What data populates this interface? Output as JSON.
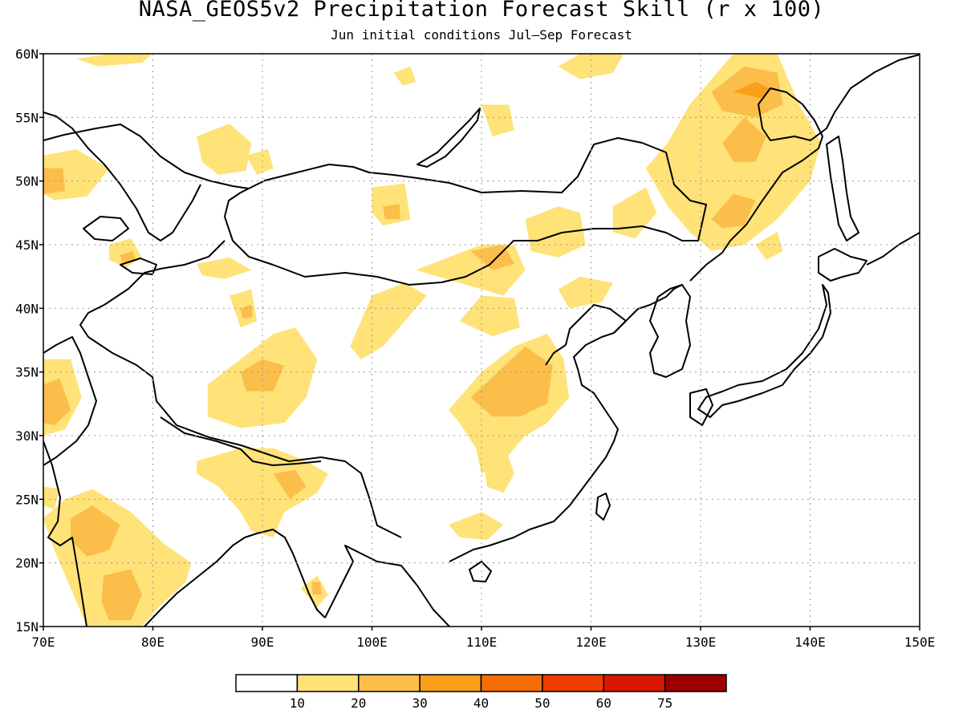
{
  "title": "NASA_GEOS5v2 Precipitation Forecast Skill (r x 100)",
  "subtitle": "Jun initial conditions  Jul—Sep Forecast",
  "map": {
    "lon_range": [
      70,
      150
    ],
    "lat_range": [
      15,
      60
    ],
    "lon_ticks": [
      "70E",
      "80E",
      "90E",
      "100E",
      "110E",
      "120E",
      "130E",
      "140E",
      "150E"
    ],
    "lat_ticks": [
      "15N",
      "20N",
      "25N",
      "30N",
      "35N",
      "40N",
      "45N",
      "50N",
      "55N",
      "60N"
    ],
    "gridlines": true
  },
  "colorbar": {
    "labels": [
      "10",
      "20",
      "30",
      "40",
      "50",
      "60",
      "75"
    ],
    "colors": [
      "#ffffff",
      "#ffe278",
      "#fbbe4a",
      "#f99f1c",
      "#f66c04",
      "#ef3c00",
      "#d81800",
      "#9e0000"
    ]
  },
  "skill_regions": [
    {
      "name": "n-india-west",
      "level": 1,
      "pts": [
        [
          70,
          36
        ],
        [
          72.5,
          36
        ],
        [
          73.5,
          33
        ],
        [
          72,
          30.5
        ],
        [
          70,
          30
        ]
      ]
    },
    {
      "name": "n-india-west-core",
      "level": 2,
      "pts": [
        [
          70,
          34
        ],
        [
          71.5,
          34.5
        ],
        [
          72.5,
          32
        ],
        [
          71,
          30.8
        ],
        [
          70,
          31
        ]
      ]
    },
    {
      "name": "india-main",
      "level": 1,
      "pts": [
        [
          70,
          23.5
        ],
        [
          72,
          25
        ],
        [
          74.5,
          25.8
        ],
        [
          78,
          24
        ],
        [
          81,
          21.5
        ],
        [
          83.5,
          20
        ],
        [
          83,
          18.5
        ],
        [
          80.5,
          16.5
        ],
        [
          79,
          15
        ],
        [
          74,
          15
        ],
        [
          73,
          17
        ],
        [
          71,
          21
        ]
      ]
    },
    {
      "name": "india-core-1",
      "level": 2,
      "pts": [
        [
          72.5,
          23.5
        ],
        [
          74.5,
          24.5
        ],
        [
          77,
          23
        ],
        [
          76,
          21
        ],
        [
          74,
          20.5
        ],
        [
          72.5,
          21.8
        ]
      ]
    },
    {
      "name": "india-core-2",
      "level": 2,
      "pts": [
        [
          75.5,
          19
        ],
        [
          78,
          19.5
        ],
        [
          79,
          17.5
        ],
        [
          78,
          15.5
        ],
        [
          76,
          15.5
        ],
        [
          75.3,
          17
        ]
      ]
    },
    {
      "name": "india-sw",
      "level": 1,
      "pts": [
        [
          70,
          26
        ],
        [
          71.5,
          25.8
        ],
        [
          71,
          24.2
        ],
        [
          70,
          24.5
        ]
      ]
    },
    {
      "name": "kaz-west",
      "level": 1,
      "pts": [
        [
          70,
          52
        ],
        [
          73,
          52.5
        ],
        [
          76,
          51
        ],
        [
          74,
          48.8
        ],
        [
          71,
          48.5
        ],
        [
          70,
          49
        ]
      ]
    },
    {
      "name": "kaz-west-core",
      "level": 2,
      "pts": [
        [
          70,
          51
        ],
        [
          71.8,
          51
        ],
        [
          72,
          49.2
        ],
        [
          70,
          49
        ]
      ]
    },
    {
      "name": "kaz-small",
      "level": 1,
      "pts": [
        [
          76,
          45
        ],
        [
          78,
          45.5
        ],
        [
          79,
          44
        ],
        [
          77.5,
          43.2
        ],
        [
          76,
          43.8
        ]
      ]
    },
    {
      "name": "kaz-small-core",
      "level": 2,
      "pts": [
        [
          77,
          44.2
        ],
        [
          78.2,
          44.5
        ],
        [
          78.4,
          43.7
        ],
        [
          77.2,
          43.6
        ]
      ]
    },
    {
      "name": "siberia-top",
      "level": 1,
      "pts": [
        [
          73,
          59.6
        ],
        [
          76,
          60
        ],
        [
          80,
          60
        ],
        [
          79,
          59.3
        ],
        [
          75,
          59
        ]
      ]
    },
    {
      "name": "siberia-mid",
      "level": 1,
      "pts": [
        [
          84,
          53.5
        ],
        [
          87,
          54.5
        ],
        [
          89,
          53
        ],
        [
          88.5,
          50.8
        ],
        [
          86,
          50.5
        ],
        [
          84.5,
          51.5
        ]
      ]
    },
    {
      "name": "sayan",
      "level": 1,
      "pts": [
        [
          88.5,
          52
        ],
        [
          90.5,
          52.5
        ],
        [
          91,
          51
        ],
        [
          89.5,
          50.5
        ]
      ]
    },
    {
      "name": "west-mongolia",
      "level": 1,
      "pts": [
        [
          100,
          49.5
        ],
        [
          103,
          49.8
        ],
        [
          103.5,
          47
        ],
        [
          101,
          46.5
        ],
        [
          100,
          47.5
        ]
      ]
    },
    {
      "name": "west-mongolia-core",
      "level": 2,
      "pts": [
        [
          101,
          48
        ],
        [
          102.5,
          48.2
        ],
        [
          102.6,
          47
        ],
        [
          101.2,
          47
        ]
      ]
    },
    {
      "name": "baikal-n",
      "level": 1,
      "pts": [
        [
          110,
          56
        ],
        [
          112.5,
          56
        ],
        [
          113,
          54
        ],
        [
          111,
          53.5
        ]
      ]
    },
    {
      "name": "siberia-east-top",
      "level": 1,
      "pts": [
        [
          102,
          58.5
        ],
        [
          103.5,
          59
        ],
        [
          104,
          57.8
        ],
        [
          102.8,
          57.5
        ]
      ]
    },
    {
      "name": "tibet-west",
      "level": 1,
      "pts": [
        [
          85,
          34
        ],
        [
          88,
          36
        ],
        [
          91,
          38
        ],
        [
          93,
          38.5
        ],
        [
          95,
          36
        ],
        [
          94,
          33
        ],
        [
          92,
          31
        ],
        [
          88,
          30.6
        ],
        [
          85,
          31.5
        ]
      ]
    },
    {
      "name": "tibet-west-core",
      "level": 2,
      "pts": [
        [
          88,
          35
        ],
        [
          90,
          36
        ],
        [
          92,
          35.5
        ],
        [
          91,
          33.5
        ],
        [
          88.5,
          33.5
        ]
      ]
    },
    {
      "name": "qinghai",
      "level": 1,
      "pts": [
        [
          87,
          41
        ],
        [
          89,
          41.5
        ],
        [
          89.5,
          39
        ],
        [
          88,
          38.5
        ]
      ]
    },
    {
      "name": "qinghai-core",
      "level": 2,
      "pts": [
        [
          88,
          40
        ],
        [
          89,
          40.3
        ],
        [
          89.1,
          39.3
        ],
        [
          88.2,
          39.2
        ]
      ]
    },
    {
      "name": "xinjiang",
      "level": 1,
      "pts": [
        [
          84,
          43.5
        ],
        [
          87,
          44
        ],
        [
          89,
          43
        ],
        [
          86.5,
          42.3
        ],
        [
          84.5,
          42.6
        ]
      ]
    },
    {
      "name": "gansu",
      "level": 1,
      "pts": [
        [
          98,
          37
        ],
        [
          100,
          41
        ],
        [
          103,
          42
        ],
        [
          105,
          41
        ],
        [
          103,
          39
        ],
        [
          101,
          37
        ],
        [
          99,
          36
        ]
      ]
    },
    {
      "name": "inner-mong",
      "level": 1,
      "pts": [
        [
          104,
          43
        ],
        [
          107,
          44
        ],
        [
          110,
          45
        ],
        [
          113,
          45
        ],
        [
          114,
          43
        ],
        [
          112,
          41
        ],
        [
          108,
          42
        ]
      ]
    },
    {
      "name": "inner-mong-core",
      "level": 2,
      "pts": [
        [
          109,
          44.5
        ],
        [
          112,
          45
        ],
        [
          113,
          43.5
        ],
        [
          111,
          43
        ]
      ]
    },
    {
      "name": "shanxi",
      "level": 1,
      "pts": [
        [
          108,
          39
        ],
        [
          110,
          41
        ],
        [
          113,
          40.8
        ],
        [
          113.5,
          38.5
        ],
        [
          111,
          37.8
        ]
      ]
    },
    {
      "name": "central-china",
      "level": 1,
      "pts": [
        [
          107,
          32
        ],
        [
          110,
          35
        ],
        [
          113,
          37
        ],
        [
          116,
          38
        ],
        [
          117.5,
          36
        ],
        [
          118,
          33
        ],
        [
          116,
          31
        ],
        [
          114,
          30
        ],
        [
          112,
          28
        ],
        [
          110,
          27
        ],
        [
          109.5,
          29
        ],
        [
          108,
          31
        ]
      ]
    },
    {
      "name": "central-china-core",
      "level": 2,
      "pts": [
        [
          109,
          33
        ],
        [
          111.5,
          35
        ],
        [
          114,
          37
        ],
        [
          116.5,
          35.5
        ],
        [
          116,
          32.5
        ],
        [
          113.5,
          31.5
        ],
        [
          111,
          31.5
        ]
      ]
    },
    {
      "name": "south-china",
      "level": 1,
      "pts": [
        [
          110,
          29
        ],
        [
          112,
          29.5
        ],
        [
          113,
          27
        ],
        [
          112,
          25.5
        ],
        [
          110.5,
          26
        ]
      ]
    },
    {
      "name": "yunnan-guangxi",
      "level": 1,
      "pts": [
        [
          107,
          23
        ],
        [
          110,
          24
        ],
        [
          112,
          23
        ],
        [
          110.5,
          21.8
        ],
        [
          108,
          22
        ]
      ]
    },
    {
      "name": "himalaya-east",
      "level": 1,
      "pts": [
        [
          84,
          28
        ],
        [
          88,
          29
        ],
        [
          91,
          29
        ],
        [
          94,
          28
        ],
        [
          96,
          27
        ],
        [
          95,
          25.5
        ],
        [
          92,
          24
        ],
        [
          91,
          22
        ],
        [
          89,
          22.5
        ],
        [
          88,
          24
        ],
        [
          86,
          26
        ],
        [
          84,
          27
        ]
      ]
    },
    {
      "name": "himalaya-east-core",
      "level": 2,
      "pts": [
        [
          91,
          27
        ],
        [
          93,
          27.3
        ],
        [
          94,
          26
        ],
        [
          92.5,
          25
        ]
      ]
    },
    {
      "name": "myanmar",
      "level": 1,
      "pts": [
        [
          93.5,
          18
        ],
        [
          95,
          19
        ],
        [
          96,
          17.5
        ],
        [
          95,
          16.5
        ]
      ]
    },
    {
      "name": "myanmar-core",
      "level": 2,
      "pts": [
        [
          94.5,
          18.5
        ],
        [
          95.3,
          18.5
        ],
        [
          95.4,
          17.5
        ],
        [
          94.6,
          17.5
        ]
      ]
    },
    {
      "name": "manchuria",
      "level": 1,
      "pts": [
        [
          114,
          47
        ],
        [
          117,
          48
        ],
        [
          119,
          47.5
        ],
        [
          119.5,
          45
        ],
        [
          117,
          44
        ],
        [
          114.5,
          44.5
        ]
      ]
    },
    {
      "name": "korea-n",
      "level": 1,
      "pts": [
        [
          117,
          41.5
        ],
        [
          119,
          42.5
        ],
        [
          122,
          42
        ],
        [
          121,
          40.5
        ],
        [
          118,
          40
        ]
      ]
    },
    {
      "name": "ne-china",
      "level": 1,
      "pts": [
        [
          122,
          48
        ],
        [
          125,
          49.5
        ],
        [
          126,
          47.5
        ],
        [
          124,
          45.5
        ],
        [
          122,
          46
        ]
      ]
    },
    {
      "name": "amur",
      "level": 1,
      "pts": [
        [
          125,
          51
        ],
        [
          127,
          53
        ],
        [
          129,
          56
        ],
        [
          131,
          58
        ],
        [
          133,
          60
        ],
        [
          137,
          60
        ],
        [
          139,
          56
        ],
        [
          141,
          53
        ],
        [
          140,
          50
        ],
        [
          137,
          47
        ],
        [
          134,
          45
        ],
        [
          131,
          44.5
        ],
        [
          129,
          46
        ],
        [
          127,
          48
        ]
      ]
    },
    {
      "name": "amur-core-1",
      "level": 2,
      "pts": [
        [
          131,
          57
        ],
        [
          134,
          59
        ],
        [
          137,
          58.5
        ],
        [
          137.5,
          56
        ],
        [
          135,
          55
        ],
        [
          132,
          55.5
        ]
      ]
    },
    {
      "name": "amur-core-2",
      "level": 2,
      "pts": [
        [
          132,
          53
        ],
        [
          134,
          55
        ],
        [
          136,
          53.5
        ],
        [
          135,
          51.5
        ],
        [
          133,
          51.5
        ]
      ]
    },
    {
      "name": "amur-core-3",
      "level": 2,
      "pts": [
        [
          131,
          47
        ],
        [
          133,
          49
        ],
        [
          135,
          48.5
        ],
        [
          134,
          46.5
        ],
        [
          132,
          46.3
        ]
      ]
    },
    {
      "name": "amur-core-4",
      "level": 3,
      "pts": [
        [
          133,
          57
        ],
        [
          135,
          57.8
        ],
        [
          136.5,
          57.2
        ],
        [
          135.5,
          56.5
        ]
      ]
    },
    {
      "name": "siberia-ne",
      "level": 1,
      "pts": [
        [
          117,
          59
        ],
        [
          119,
          60
        ],
        [
          123,
          60
        ],
        [
          122,
          58.5
        ],
        [
          119,
          58
        ]
      ]
    },
    {
      "name": "sakhalin-area",
      "level": 1,
      "pts": [
        [
          135,
          45
        ],
        [
          137,
          46
        ],
        [
          137.5,
          44.5
        ],
        [
          136,
          43.8
        ]
      ]
    }
  ]
}
